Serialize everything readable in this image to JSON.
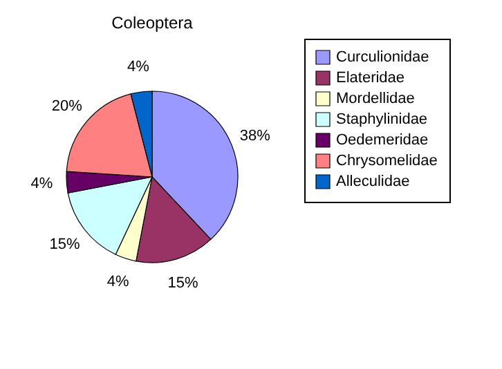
{
  "chart_data": {
    "type": "pie",
    "title": "Coleoptera",
    "categories": [
      "Curculionidae",
      "Elateridae",
      "Mordellidae",
      "Staphylinidae",
      "Oedemeridae",
      "Chrysomelidae",
      "Alleculidae"
    ],
    "values": [
      38,
      15,
      4,
      15,
      4,
      20,
      4
    ],
    "colors": [
      "#9999ff",
      "#993366",
      "#ffffcc",
      "#ccffff",
      "#660066",
      "#ff8080",
      "#0066cc"
    ],
    "value_labels": [
      "38%",
      "15%",
      "4%",
      "15%",
      "4%",
      "20%",
      "4%"
    ],
    "legend": "right"
  }
}
